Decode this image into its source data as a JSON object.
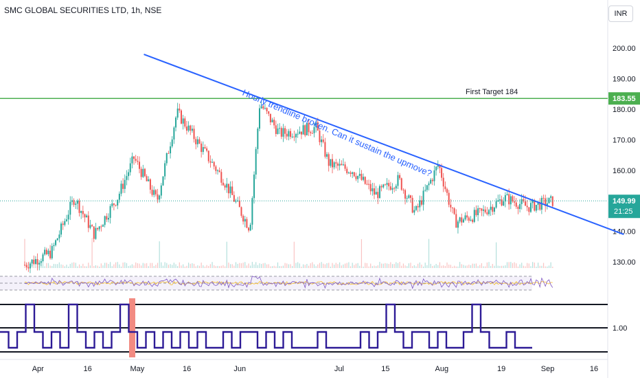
{
  "header": {
    "title": "SMC GLOBAL SECURITIES LTD, 1h, NSE",
    "currency": "INR"
  },
  "colors": {
    "up": "#26a69a",
    "down": "#ef5350",
    "trend": "#2962ff",
    "target": "#4caf50",
    "indicator": "#2d1b96",
    "rsi": "#7e57c2",
    "highlight": "#f28b82",
    "annotation": "#2962ff"
  },
  "chart_data": {
    "type": "candlestick",
    "title": "SMC GLOBAL SECURITIES LTD, 1h, NSE",
    "x_tick_labels": [
      "Apr",
      "16",
      "May",
      "16",
      "Jun",
      "Jul",
      "15",
      "Aug",
      "19",
      "Sep",
      "16"
    ],
    "y_tick_labels": [
      "130.00",
      "140.00",
      "150.00",
      "160.00",
      "170.00",
      "180.00",
      "190.00",
      "200.00"
    ],
    "y_range": [
      128,
      207
    ],
    "price_path": [
      {
        "date": "2024-03-28",
        "close": 129
      },
      {
        "date": "2024-04-05",
        "close": 133
      },
      {
        "date": "2024-04-12",
        "close": 151
      },
      {
        "date": "2024-04-18",
        "close": 139
      },
      {
        "date": "2024-04-25",
        "close": 151
      },
      {
        "date": "2024-04-30",
        "close": 164
      },
      {
        "date": "2024-05-07",
        "close": 150
      },
      {
        "date": "2024-05-13",
        "close": 179
      },
      {
        "date": "2024-05-20",
        "close": 168
      },
      {
        "date": "2024-05-27",
        "close": 157
      },
      {
        "date": "2024-06-04",
        "close": 141
      },
      {
        "date": "2024-06-07",
        "close": 182
      },
      {
        "date": "2024-06-13",
        "close": 172
      },
      {
        "date": "2024-06-24",
        "close": 174
      },
      {
        "date": "2024-06-28",
        "close": 162
      },
      {
        "date": "2024-07-05",
        "close": 160
      },
      {
        "date": "2024-07-12",
        "close": 152
      },
      {
        "date": "2024-07-19",
        "close": 157
      },
      {
        "date": "2024-07-24",
        "close": 146
      },
      {
        "date": "2024-07-31",
        "close": 162
      },
      {
        "date": "2024-08-05",
        "close": 143
      },
      {
        "date": "2024-08-13",
        "close": 146
      },
      {
        "date": "2024-08-20",
        "close": 151
      },
      {
        "date": "2024-08-27",
        "close": 148
      },
      {
        "date": "2024-09-04",
        "close": 150
      }
    ],
    "last_price": "149.99",
    "countdown": "21:25",
    "target_level": {
      "value": 183.55,
      "label": "183.55",
      "text": "First Target 184"
    },
    "trendline": {
      "start": {
        "date": "2024-05-03",
        "price": 198
      },
      "end": {
        "date": "2024-09-25",
        "price": 139
      }
    },
    "annotation": "Hourly trendline broken. Can it sustain the upmove?",
    "lower_indicator": {
      "tick_label": "1.00",
      "levels": [
        0,
        1,
        2
      ],
      "values": [
        1,
        0,
        1,
        2,
        1,
        0,
        1,
        0,
        2,
        1,
        0,
        1,
        0,
        1,
        2,
        1,
        0,
        1,
        0,
        1,
        0,
        1,
        0,
        1,
        0,
        0,
        1,
        0,
        1,
        1,
        0,
        1,
        0,
        1,
        0,
        0,
        0,
        1,
        0,
        0,
        0,
        0,
        1,
        0,
        1,
        2,
        1,
        0,
        1,
        1,
        0,
        1,
        0,
        0,
        1,
        2,
        1,
        0,
        0,
        1,
        0,
        0
      ]
    }
  }
}
